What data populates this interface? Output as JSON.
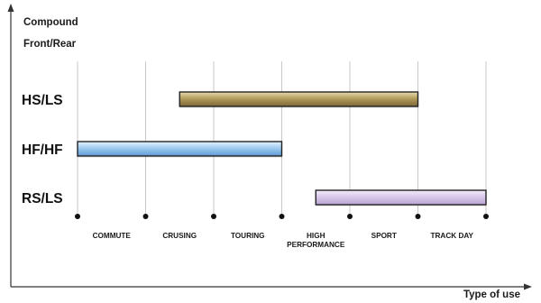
{
  "chart_data": {
    "type": "bar",
    "orientation": "horizontal-range",
    "ylabel_line1": "Compound",
    "ylabel_line2": "Front/Rear",
    "xlabel": "Type of use",
    "categories": [
      "COMMUTE",
      "CRUSING",
      "TOURING",
      "HIGH PERFORMANCE",
      "SPORT",
      "TRACK DAY"
    ],
    "series": [
      {
        "name": "HS/LS",
        "start": 1.5,
        "end": 5.0,
        "color": "#a8904f"
      },
      {
        "name": "HF/HF",
        "start": 0.0,
        "end": 3.0,
        "color": "#7fb8e8"
      },
      {
        "name": "RS/LS",
        "start": 3.5,
        "end": 6.0,
        "color": "#c9b4dd"
      }
    ],
    "xlim": [
      0,
      6
    ],
    "grid": true,
    "legend": "none"
  }
}
